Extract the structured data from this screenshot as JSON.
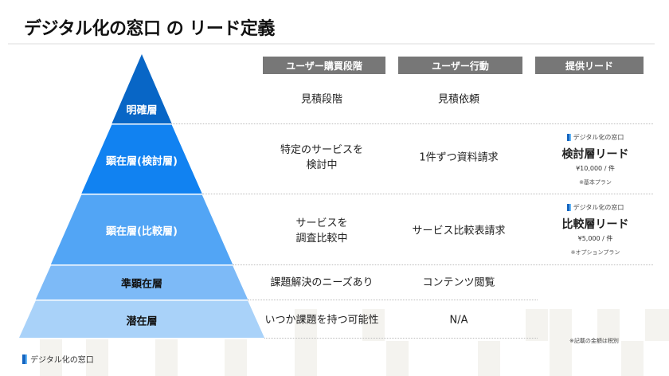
{
  "title": "デジタル化の窓口 の リード定義",
  "colors": {
    "level1": "#0866c6",
    "level2": "#1182f1",
    "level3": "#52a5f5",
    "level4": "#7dbaf7",
    "level5": "#a9d2f9",
    "header_bg": "#777777"
  },
  "headers": [
    "ユーザー購買段階",
    "ユーザー行動",
    "提供リード"
  ],
  "levels": [
    {
      "name": "明確層",
      "stage": "見積段階",
      "action": "見積依頼"
    },
    {
      "name": "顕在層(検討層)",
      "stage": "特定のサービスを\n検討中",
      "action": "1件ずつ資料請求"
    },
    {
      "name": "顕在層(比較層)",
      "stage": "サービスを\n調査比較中",
      "action": "サービス比較表請求"
    },
    {
      "name": "準顕在層",
      "stage": "課題解決のニーズあり",
      "action": "コンテンツ閲覧"
    },
    {
      "name": "潜在層",
      "stage": "いつか課題を持つ可能性",
      "action": "N/A"
    }
  ],
  "leads": [
    {
      "brand": "デジタル化の窓口",
      "name": "検討層リード",
      "price": "¥10,000 / 件",
      "note": "※基本プラン"
    },
    {
      "brand": "デジタル化の窓口",
      "name": "比較層リード",
      "price": "¥5,000 / 件",
      "note": "※オプションプラン"
    }
  ],
  "footnote": "※記載の金額は税別",
  "footer_brand": "デジタル化の窓口"
}
